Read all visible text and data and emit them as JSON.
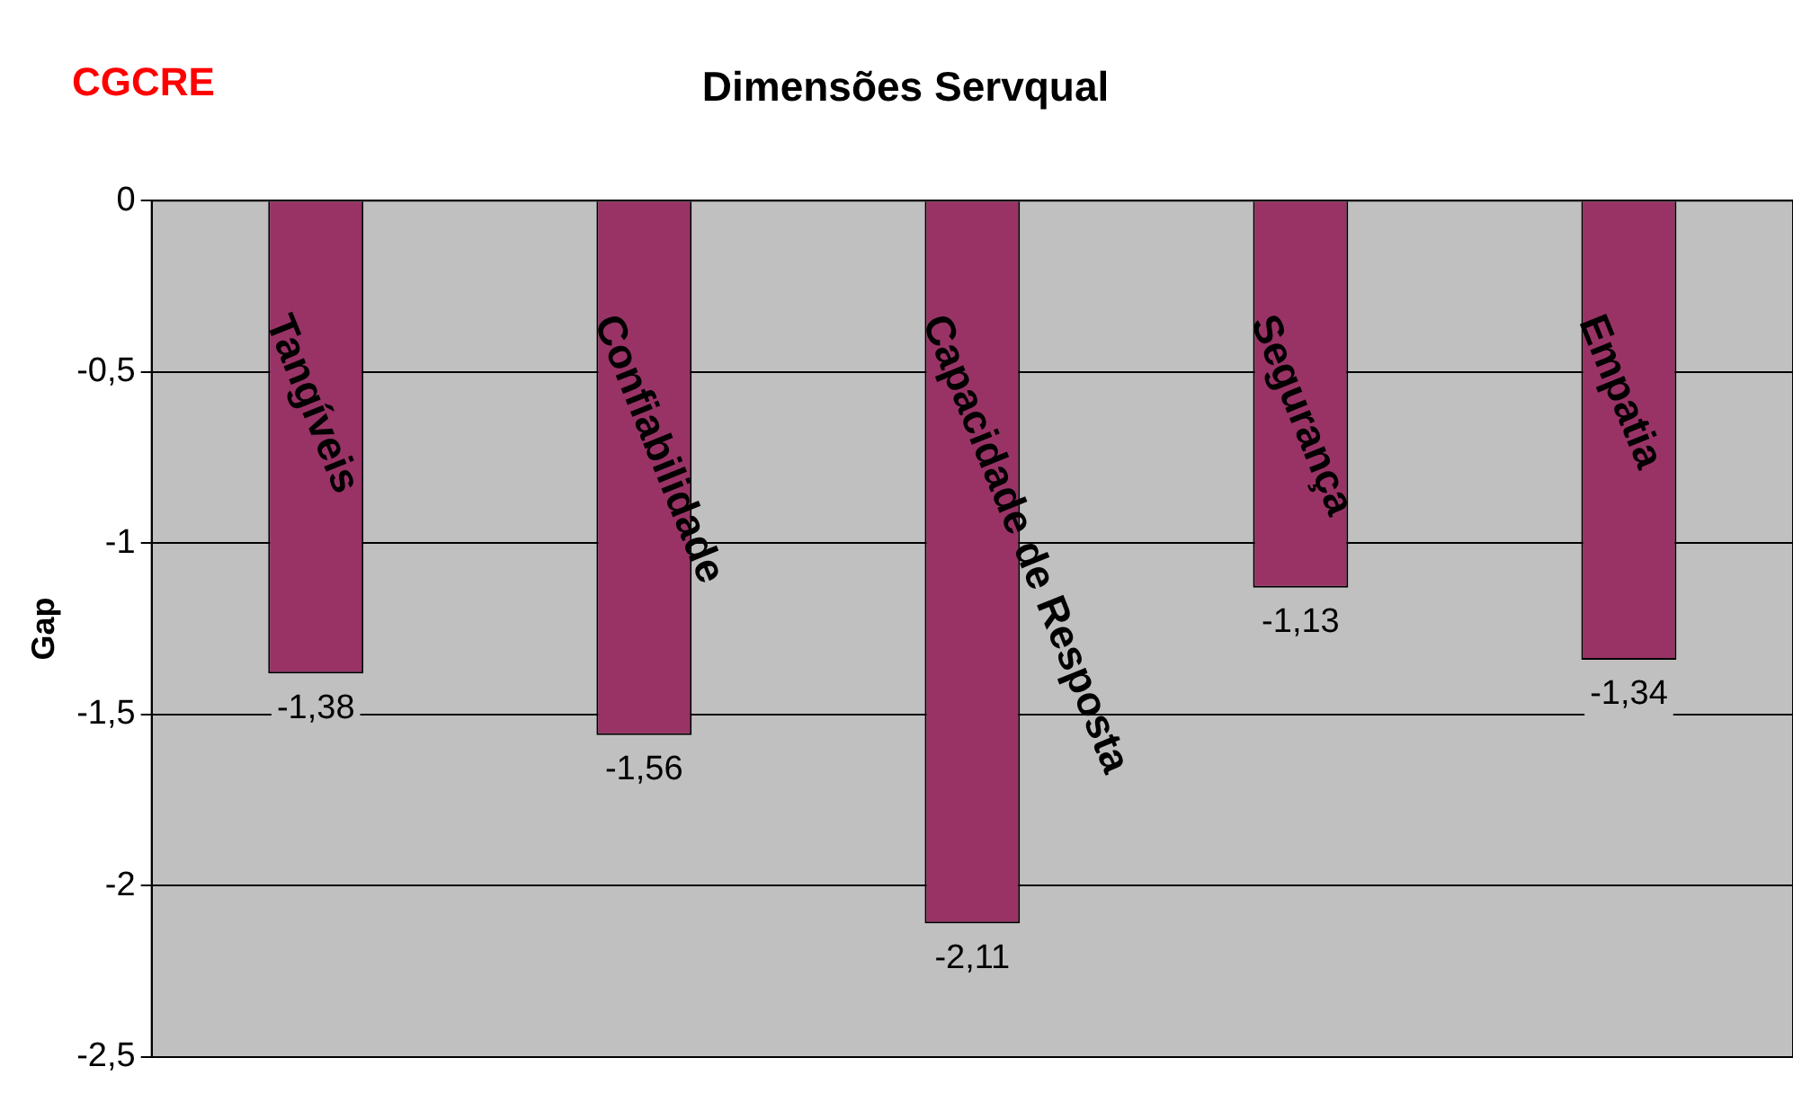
{
  "chart_data": {
    "type": "bar",
    "title": "Dimensões Servqual",
    "ylabel": "Gap",
    "annotations": [
      "CGCRE"
    ],
    "categories": [
      "Tangíveis",
      "Confiabilidade",
      "Capacidade de Resposta",
      "Segurança",
      "Empatia"
    ],
    "values": [
      -1.38,
      -1.56,
      -2.11,
      -1.13,
      -1.34
    ],
    "value_labels": [
      "-1,38",
      "-1,56",
      "-2,11",
      "-1,13",
      "-1,34"
    ],
    "color": "#993366",
    "ylim": [
      -2.5,
      0
    ],
    "yticks": [
      0,
      {
        "value": -0.5,
        "label": "-0,5"
      },
      -1,
      {
        "value": -1.5,
        "label": "-1,5"
      },
      -2,
      {
        "value": -2.5,
        "label": "-2,5"
      }
    ],
    "grid": "y",
    "legend": false
  }
}
